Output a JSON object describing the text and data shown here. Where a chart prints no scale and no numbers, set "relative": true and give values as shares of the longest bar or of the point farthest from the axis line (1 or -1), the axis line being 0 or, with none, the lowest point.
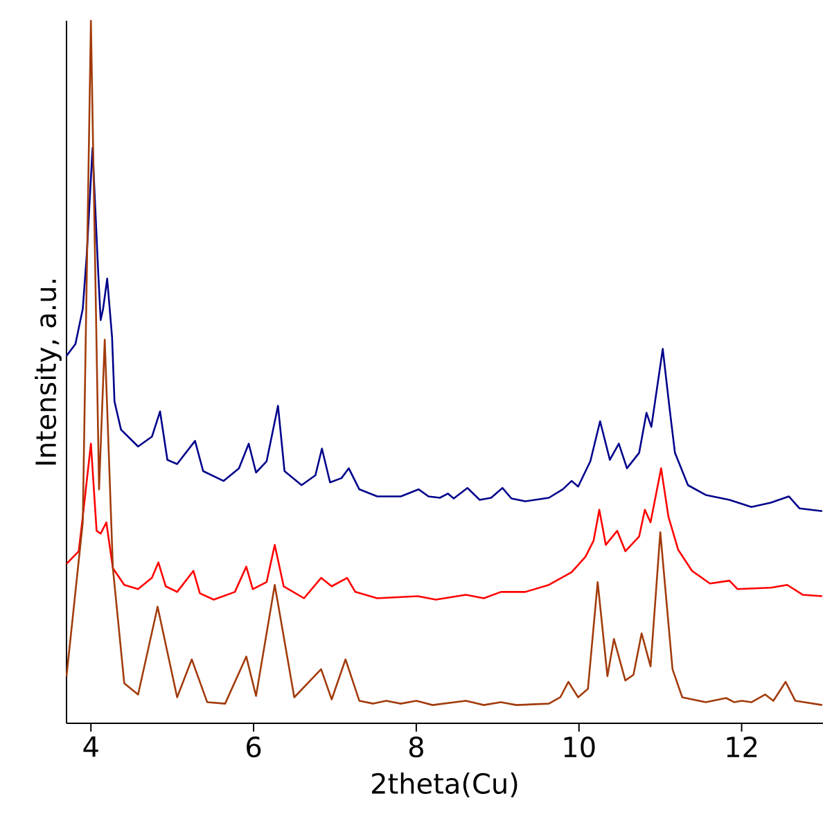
{
  "chart_data": {
    "type": "line",
    "xlabel": "2theta(Cu)",
    "ylabel": "Intensity, a.u.",
    "relative": true,
    "marker": "none",
    "xlim": [
      3.7,
      13
    ],
    "xticks": [
      4,
      6,
      8,
      10,
      12
    ],
    "series": [
      {
        "color": "#00008b",
        "x": [
          3.7,
          3.81,
          3.9,
          3.95,
          4.02,
          4.09,
          4.12,
          4.15,
          4.2,
          4.26,
          4.29,
          4.37,
          4.58,
          4.75,
          4.85,
          4.94,
          5.06,
          5.28,
          5.38,
          5.63,
          5.82,
          5.94,
          6.03,
          6.16,
          6.3,
          6.38,
          6.59,
          6.76,
          6.84,
          6.94,
          7.08,
          7.17,
          7.3,
          7.52,
          7.81,
          8.03,
          8.15,
          8.29,
          8.39,
          8.46,
          8.63,
          8.78,
          8.92,
          9.06,
          9.17,
          9.34,
          9.63,
          9.8,
          9.91,
          9.99,
          10.14,
          10.26,
          10.38,
          10.49,
          10.59,
          10.74,
          10.83,
          10.89,
          11.03,
          11.11,
          11.18,
          11.34,
          11.56,
          11.85,
          12.12,
          12.36,
          12.58,
          12.71,
          12.99
        ],
        "values": [
          0.523,
          0.54,
          0.59,
          0.669,
          0.819,
          0.641,
          0.574,
          0.59,
          0.633,
          0.55,
          0.458,
          0.418,
          0.394,
          0.408,
          0.444,
          0.375,
          0.369,
          0.402,
          0.359,
          0.345,
          0.363,
          0.398,
          0.357,
          0.373,
          0.452,
          0.359,
          0.339,
          0.353,
          0.391,
          0.343,
          0.349,
          0.363,
          0.333,
          0.323,
          0.323,
          0.333,
          0.323,
          0.321,
          0.327,
          0.32,
          0.335,
          0.318,
          0.321,
          0.335,
          0.32,
          0.316,
          0.321,
          0.333,
          0.345,
          0.337,
          0.373,
          0.43,
          0.375,
          0.398,
          0.363,
          0.385,
          0.442,
          0.422,
          0.533,
          0.452,
          0.385,
          0.339,
          0.325,
          0.318,
          0.308,
          0.314,
          0.323,
          0.306,
          0.302
        ]
      },
      {
        "color": "#ff0000",
        "x": [
          3.7,
          3.85,
          3.9,
          4.0,
          4.07,
          4.12,
          4.19,
          4.27,
          4.41,
          4.58,
          4.75,
          4.83,
          4.92,
          5.06,
          5.26,
          5.34,
          5.51,
          5.77,
          5.91,
          5.99,
          6.16,
          6.26,
          6.37,
          6.62,
          6.83,
          6.96,
          7.15,
          7.25,
          7.52,
          8.02,
          8.24,
          8.61,
          8.83,
          9.04,
          9.34,
          9.63,
          9.91,
          10.08,
          10.18,
          10.25,
          10.33,
          10.47,
          10.57,
          10.74,
          10.81,
          10.88,
          11.01,
          11.1,
          11.22,
          11.39,
          11.61,
          11.85,
          11.95,
          12.36,
          12.56,
          12.75,
          12.99
        ],
        "values": [
          0.227,
          0.245,
          0.294,
          0.398,
          0.274,
          0.27,
          0.286,
          0.221,
          0.197,
          0.191,
          0.207,
          0.229,
          0.195,
          0.187,
          0.217,
          0.185,
          0.176,
          0.187,
          0.223,
          0.191,
          0.201,
          0.254,
          0.195,
          0.178,
          0.207,
          0.195,
          0.207,
          0.187,
          0.178,
          0.181,
          0.176,
          0.183,
          0.178,
          0.187,
          0.187,
          0.197,
          0.215,
          0.237,
          0.26,
          0.304,
          0.254,
          0.274,
          0.245,
          0.266,
          0.304,
          0.286,
          0.363,
          0.294,
          0.247,
          0.217,
          0.199,
          0.203,
          0.191,
          0.193,
          0.197,
          0.183,
          0.181
        ]
      },
      {
        "color": "#a23b0b",
        "x": [
          3.7,
          3.9,
          4.0,
          4.1,
          4.17,
          4.27,
          4.41,
          4.58,
          4.82,
          5.06,
          5.24,
          5.43,
          5.65,
          5.91,
          6.03,
          6.26,
          6.5,
          6.83,
          6.96,
          7.13,
          7.3,
          7.47,
          7.63,
          7.81,
          8.0,
          8.2,
          8.61,
          8.83,
          9.04,
          9.23,
          9.63,
          9.77,
          9.87,
          9.99,
          10.11,
          10.23,
          10.35,
          10.43,
          10.57,
          10.67,
          10.77,
          10.88,
          11.0,
          11.08,
          11.15,
          11.27,
          11.56,
          11.81,
          11.91,
          12.0,
          12.12,
          12.29,
          12.39,
          12.54,
          12.66,
          12.99
        ],
        "values": [
          0.067,
          0.286,
          1.0,
          0.333,
          0.546,
          0.221,
          0.057,
          0.041,
          0.166,
          0.037,
          0.091,
          0.03,
          0.028,
          0.095,
          0.039,
          0.197,
          0.037,
          0.077,
          0.034,
          0.091,
          0.032,
          0.028,
          0.032,
          0.028,
          0.032,
          0.026,
          0.032,
          0.026,
          0.03,
          0.026,
          0.028,
          0.037,
          0.059,
          0.037,
          0.049,
          0.201,
          0.067,
          0.12,
          0.061,
          0.069,
          0.128,
          0.081,
          0.272,
          0.168,
          0.077,
          0.037,
          0.03,
          0.036,
          0.03,
          0.032,
          0.03,
          0.041,
          0.032,
          0.059,
          0.032,
          0.026
        ]
      }
    ]
  }
}
